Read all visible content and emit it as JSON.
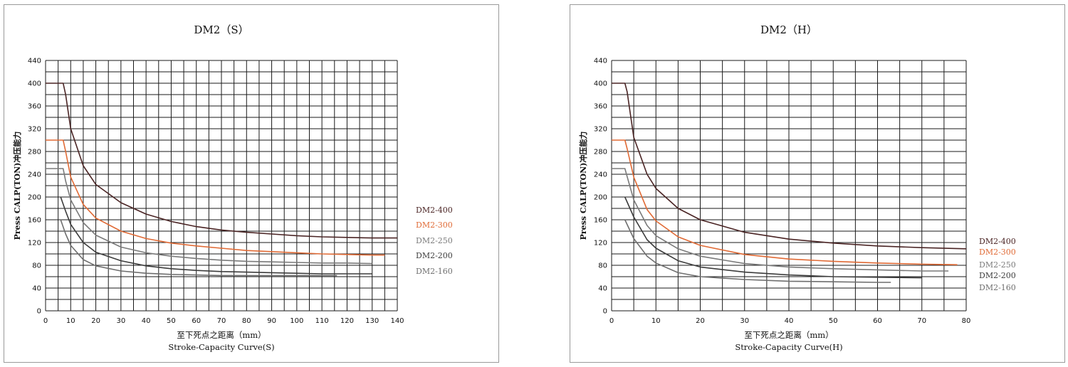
{
  "chart_data": [
    {
      "type": "line",
      "title": "DM2（S）",
      "xlabel": "至下死点之距离（mm）",
      "xlabel_en": "Stroke-Capacity Curve(S)",
      "ylabel": "Press CALP(TON)冲压能力",
      "xlim": [
        0,
        140
      ],
      "ylim": [
        0,
        440
      ],
      "x_ticks": [
        0,
        10,
        20,
        30,
        40,
        50,
        60,
        70,
        80,
        90,
        100,
        110,
        120,
        130,
        140
      ],
      "y_ticks": [
        0,
        40,
        80,
        120,
        160,
        200,
        240,
        280,
        320,
        360,
        400,
        440
      ],
      "grid": true,
      "legend_position": "right",
      "series": [
        {
          "name": "DM2-400",
          "color": "#4a2424",
          "x": [
            0,
            7,
            8,
            10,
            15,
            20,
            30,
            40,
            50,
            60,
            70,
            80,
            90,
            100,
            110,
            120,
            130,
            140
          ],
          "y": [
            400,
            400,
            380,
            320,
            255,
            222,
            190,
            170,
            157,
            148,
            142,
            138,
            135,
            132,
            130,
            129,
            128,
            128
          ]
        },
        {
          "name": "DM2-300",
          "color": "#e06a35",
          "x": [
            0,
            7,
            8,
            10,
            15,
            20,
            30,
            40,
            50,
            60,
            70,
            80,
            90,
            100,
            110,
            120,
            130,
            135
          ],
          "y": [
            300,
            300,
            280,
            235,
            187,
            163,
            140,
            127,
            119,
            114,
            110,
            106,
            104,
            102,
            100,
            99,
            98,
            98
          ]
        },
        {
          "name": "DM2-250",
          "color": "#7a7a7a",
          "x": [
            0,
            7,
            8,
            10,
            15,
            20,
            30,
            40,
            50,
            60,
            70,
            80,
            90,
            100,
            110,
            120,
            130
          ],
          "y": [
            250,
            250,
            228,
            195,
            155,
            133,
            112,
            102,
            96,
            92,
            89,
            87,
            86,
            85,
            84,
            84,
            83
          ]
        },
        {
          "name": "DM2-200",
          "color": "#3c3c3c",
          "x": [
            6,
            8,
            10,
            15,
            20,
            30,
            40,
            50,
            60,
            70,
            80,
            90,
            100,
            110,
            120,
            130
          ],
          "y": [
            200,
            175,
            152,
            120,
            103,
            88,
            79,
            74,
            71,
            69,
            68,
            67,
            66,
            65,
            65,
            65
          ]
        },
        {
          "name": "DM2-160",
          "color": "#6e6e6e",
          "x": [
            6,
            8,
            10,
            15,
            20,
            30,
            40,
            50,
            60,
            70,
            80,
            90,
            100,
            110,
            116
          ],
          "y": [
            160,
            135,
            115,
            90,
            79,
            70,
            66,
            64,
            63,
            62,
            62,
            62,
            62,
            62,
            62
          ]
        }
      ]
    },
    {
      "type": "line",
      "title": "DM2（H）",
      "xlabel": "至下死点之距离（mm）",
      "xlabel_en": "Stroke-Capacity Curve(H)",
      "ylabel": "Press CALP(TON)冲压能力",
      "xlim": [
        0,
        80
      ],
      "ylim": [
        0,
        440
      ],
      "x_ticks": [
        0,
        10,
        20,
        30,
        40,
        50,
        60,
        70,
        80
      ],
      "y_ticks": [
        0,
        40,
        80,
        120,
        160,
        200,
        240,
        280,
        320,
        360,
        400,
        440
      ],
      "grid": true,
      "legend_position": "right",
      "series": [
        {
          "name": "DM2-400",
          "color": "#4a2424",
          "x": [
            0,
            3,
            3.5,
            5,
            8,
            10,
            15,
            20,
            30,
            40,
            50,
            60,
            70,
            80
          ],
          "y": [
            400,
            400,
            385,
            305,
            240,
            215,
            180,
            160,
            138,
            126,
            119,
            114,
            111,
            109
          ]
        },
        {
          "name": "DM2-300",
          "color": "#e06a35",
          "x": [
            0,
            3,
            3.5,
            5,
            8,
            10,
            15,
            20,
            30,
            40,
            50,
            60,
            70,
            78
          ],
          "y": [
            300,
            300,
            285,
            235,
            178,
            158,
            130,
            115,
            99,
            91,
            87,
            84,
            82,
            81
          ]
        },
        {
          "name": "DM2-250",
          "color": "#7a7a7a",
          "x": [
            0,
            3,
            3.5,
            5,
            8,
            10,
            15,
            20,
            30,
            40,
            50,
            60,
            70,
            76
          ],
          "y": [
            250,
            250,
            236,
            195,
            150,
            132,
            109,
            96,
            83,
            77,
            74,
            72,
            70,
            70
          ]
        },
        {
          "name": "DM2-200",
          "color": "#3c3c3c",
          "x": [
            3,
            5,
            8,
            10,
            15,
            20,
            30,
            40,
            50,
            60,
            70
          ],
          "y": [
            200,
            165,
            125,
            110,
            88,
            77,
            68,
            63,
            60,
            59,
            58
          ]
        },
        {
          "name": "DM2-160",
          "color": "#6e6e6e",
          "x": [
            3,
            5,
            8,
            10,
            15,
            20,
            30,
            40,
            50,
            60,
            63
          ],
          "y": [
            160,
            127,
            96,
            84,
            67,
            60,
            55,
            52,
            51,
            50,
            50
          ]
        }
      ]
    }
  ]
}
